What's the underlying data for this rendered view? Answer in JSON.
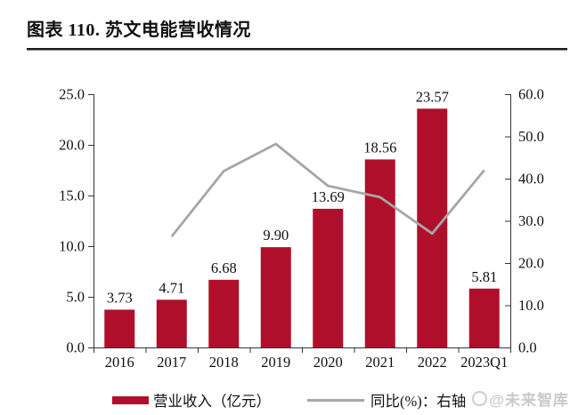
{
  "page": {
    "title": "图表 110. 苏文电能营收情况"
  },
  "colors": {
    "bar": "#B00F2B",
    "line": "#A6A6A6",
    "axis": "#333333",
    "text": "#111111",
    "title_rule": "#1a1a1a",
    "watermark": "#c9c9c9"
  },
  "chart_data": {
    "type": "bar",
    "title": "图表 110. 苏文电能营收情况",
    "categories": [
      "2016",
      "2017",
      "2018",
      "2019",
      "2020",
      "2021",
      "2022",
      "2023Q1"
    ],
    "series": [
      {
        "name": "营业收入（亿元）",
        "type": "bar",
        "axis": "left",
        "color": "#B00F2B",
        "values": [
          3.73,
          4.71,
          6.68,
          9.9,
          13.69,
          18.56,
          23.57,
          5.81
        ]
      },
      {
        "name": "同比(%)：右轴",
        "type": "line",
        "axis": "right",
        "color": "#A6A6A6",
        "x_start_index": 1,
        "values": [
          26.3,
          41.8,
          48.2,
          38.3,
          35.6,
          27.0,
          42.0
        ]
      }
    ],
    "left_axis": {
      "min": 0,
      "max": 25,
      "ticks": [
        "0.0",
        "5.0",
        "10.0",
        "15.0",
        "20.0",
        "25.0"
      ]
    },
    "right_axis": {
      "min": 0,
      "max": 60,
      "ticks": [
        "0.0",
        "10.0",
        "20.0",
        "30.0",
        "40.0",
        "50.0",
        "60.0"
      ]
    },
    "grid": false,
    "legend_position": "bottom",
    "bar_value_decimals": 2
  },
  "legend": {
    "bar_label": "营业收入（亿元）",
    "line_label": "同比(%)：右轴"
  },
  "watermark": {
    "text": "@未来智库"
  }
}
